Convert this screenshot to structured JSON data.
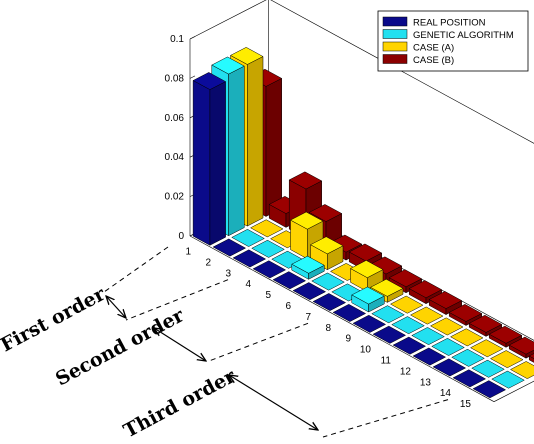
{
  "chart_data": {
    "type": "bar",
    "subtype": "3d-grouped-bar",
    "categories": [
      "1",
      "2",
      "3",
      "4",
      "5",
      "6",
      "7",
      "8",
      "9",
      "10",
      "11",
      "12",
      "13",
      "14",
      "15"
    ],
    "series": [
      {
        "name": "REAL POSITION",
        "color": "#0a0a8a",
        "values": [
          0.079,
          0,
          0,
          0,
          0,
          0,
          0,
          0,
          0,
          0,
          0,
          0,
          0,
          0,
          0
        ]
      },
      {
        "name": "GENETIC ALGORITHM",
        "color": "#22e0f0",
        "values": [
          0.082,
          0,
          0,
          0,
          0.003,
          0,
          0,
          0.004,
          0,
          0,
          0,
          0,
          0,
          0,
          0
        ]
      },
      {
        "name": "CASE (A)",
        "color": "#ffd400",
        "values": [
          0.082,
          0,
          0,
          0.015,
          0.008,
          0,
          0.007,
          0.003,
          0,
          0,
          0,
          0,
          0,
          0,
          0
        ]
      },
      {
        "name": "CASE (B)",
        "color": "#8b0000",
        "values": [
          0.066,
          0.007,
          0.025,
          0.014,
          0.004,
          0.005,
          0.004,
          0.003,
          0.003,
          0.003,
          0.002,
          0.002,
          0.002,
          0.002,
          0.002
        ]
      }
    ],
    "ylim": [
      0,
      0.1
    ],
    "yticks": [
      "0",
      "0.02",
      "0.04",
      "0.06",
      "0.08",
      "0.1"
    ],
    "grid": false,
    "legend_position": "top-right",
    "annotations": [
      "First order",
      "Second order",
      "Third order"
    ]
  }
}
